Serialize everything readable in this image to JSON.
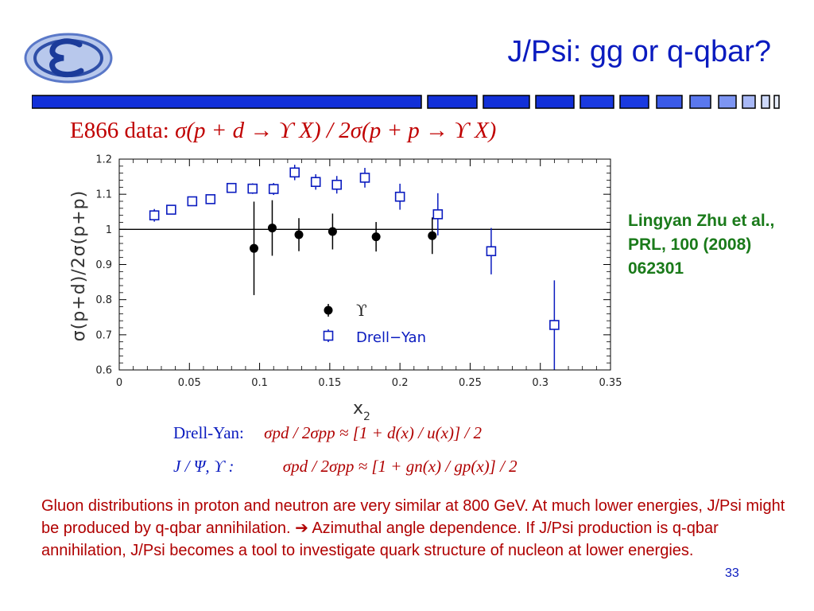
{
  "slide": {
    "title": "J/Psi: gg or q-qbar?",
    "page_number": "33",
    "accent_color": "#0a1bbf",
    "highlight_color": "#b00000",
    "reference_color": "#1a7a1a"
  },
  "formula_title": {
    "prefix": "E866 data:",
    "expression": "σ(p + d → ϒ X) / 2σ(p + p → ϒ X)"
  },
  "reference": {
    "text": "Lingyan Zhu et al., PRL, 100 (2008) 062301"
  },
  "equations": {
    "drell_yan_label": "Drell-Yan:",
    "drell_yan_expr": "σpd / 2σpp ≈ [1 + d(x) / u(x)] / 2",
    "jpsi_label": "J / Ψ, ϒ :",
    "jpsi_expr": "σpd / 2σpp ≈ [1 + gn(x) / gp(x)] / 2"
  },
  "body": {
    "text": "Gluon distributions in proton and neutron are very similar at 800 GeV.  At much lower energies, J/Psi might be produced by q-qbar annihilation.  ➔ Azimuthal angle dependence.  If J/Psi production is q-qbar annihilation, J/Psi becomes a tool to investigate quark structure of nucleon at lower energies."
  },
  "chart_data": {
    "type": "scatter",
    "xlabel": "x2",
    "ylabel": "σ(p+d)/2σ(p+p)",
    "xlim": [
      0,
      0.35
    ],
    "ylim": [
      0.6,
      1.2
    ],
    "x_ticks": [
      "0",
      "0.05",
      "0.1",
      "0.15",
      "0.2",
      "0.25",
      "0.3",
      "0.35"
    ],
    "y_ticks": [
      "0.6",
      "0.7",
      "0.8",
      "0.9",
      "1",
      "1.1",
      "1.2"
    ],
    "reference_line": 1.0,
    "legend_position": "lower-center",
    "series": [
      {
        "name": "ϒ",
        "marker": "filled-circle",
        "color": "#000000",
        "points": [
          {
            "x": 0.096,
            "y": 0.946,
            "err": 0.133
          },
          {
            "x": 0.109,
            "y": 1.004,
            "err": 0.079
          },
          {
            "x": 0.128,
            "y": 0.985,
            "err": 0.047
          },
          {
            "x": 0.152,
            "y": 0.994,
            "err": 0.051
          },
          {
            "x": 0.183,
            "y": 0.979,
            "err": 0.042
          },
          {
            "x": 0.223,
            "y": 0.982,
            "err": 0.052
          }
        ]
      },
      {
        "name": "Drell−Yan",
        "marker": "open-square",
        "color": "#0a1bbf",
        "points": [
          {
            "x": 0.025,
            "y": 1.04,
            "err": 0.018
          },
          {
            "x": 0.037,
            "y": 1.056,
            "err": 0.012
          },
          {
            "x": 0.052,
            "y": 1.08,
            "err": 0.012
          },
          {
            "x": 0.065,
            "y": 1.086,
            "err": 0.012
          },
          {
            "x": 0.08,
            "y": 1.118,
            "err": 0.013
          },
          {
            "x": 0.095,
            "y": 1.116,
            "err": 0.015
          },
          {
            "x": 0.11,
            "y": 1.115,
            "err": 0.017
          },
          {
            "x": 0.125,
            "y": 1.162,
            "err": 0.022
          },
          {
            "x": 0.14,
            "y": 1.135,
            "err": 0.022
          },
          {
            "x": 0.155,
            "y": 1.127,
            "err": 0.025
          },
          {
            "x": 0.175,
            "y": 1.147,
            "err": 0.028
          },
          {
            "x": 0.2,
            "y": 1.093,
            "err": 0.037
          },
          {
            "x": 0.227,
            "y": 1.043,
            "err": 0.06
          },
          {
            "x": 0.265,
            "y": 0.938,
            "err": 0.066
          },
          {
            "x": 0.31,
            "y": 0.728,
            "err": 0.127
          }
        ]
      }
    ]
  }
}
